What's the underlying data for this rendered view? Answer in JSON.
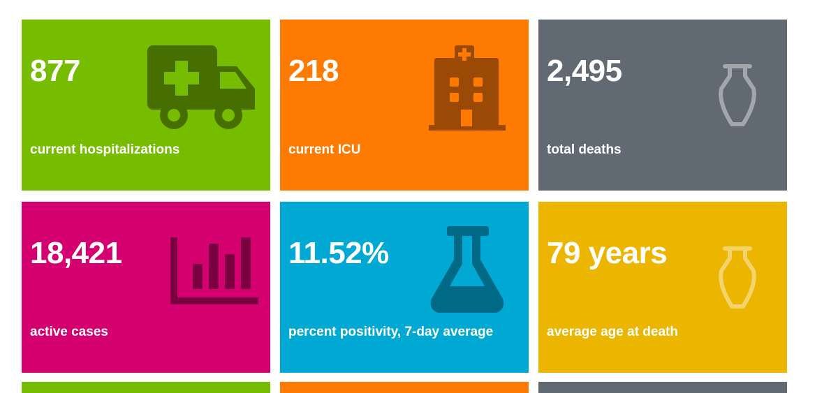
{
  "tiles": [
    {
      "value": "877",
      "label": "current hospitalizations",
      "color": "#76bc00",
      "icon": "ambulance-icon",
      "icon_color": "#466f00"
    },
    {
      "value": "218",
      "label": "current ICU",
      "color": "#ff7a00",
      "icon": "hospital-icon",
      "icon_color": "#9b4a05"
    },
    {
      "value": "2,495",
      "label": "total deaths",
      "color": "#616a73",
      "icon": "urn-icon",
      "icon_color": "#a3a7ac"
    },
    {
      "value": "18,421",
      "label": "active cases",
      "color": "#d4006f",
      "icon": "bar-chart-icon",
      "icon_color": "#7b0042"
    },
    {
      "value": "11.52%",
      "label": "percent positivity, 7-day average",
      "color": "#00a9d4",
      "icon": "flask-icon",
      "icon_color": "#006a86"
    },
    {
      "value": "79 years",
      "label": "average age at death",
      "color": "#ebb500",
      "icon": "urn-icon",
      "icon_color": "#f4d46a"
    }
  ],
  "partial_row_colors": [
    "#76bc00",
    "#ff7a00",
    "#616a73"
  ]
}
